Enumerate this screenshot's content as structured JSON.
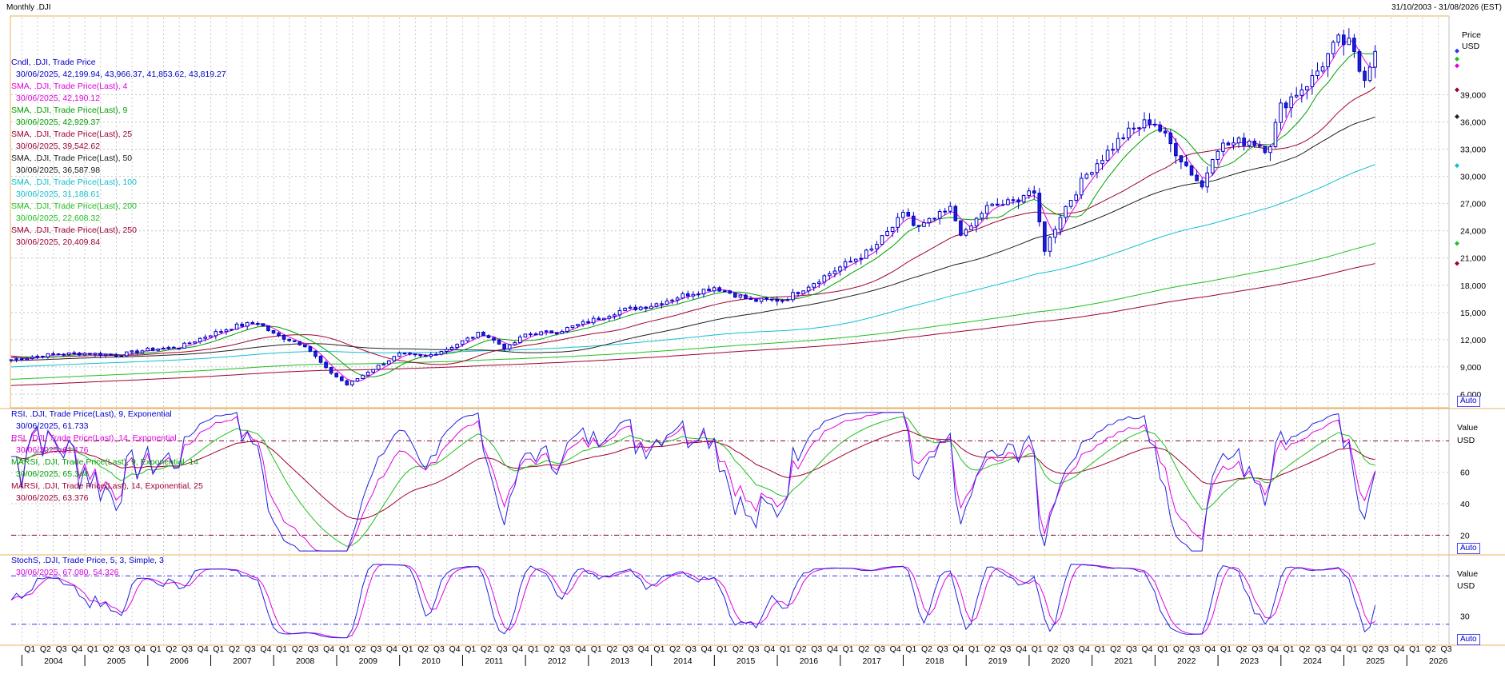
{
  "window": {
    "timeframe_label": "Monthly  .DJI",
    "date_range": "31/10/2003 - 31/08/2026 (EST)"
  },
  "price_panel": {
    "legend": [
      {
        "name": "Cndl, .DJI, Trade Price",
        "value": "30/06/2025, 42,199.94, 43,966.37, 41,853.62, 43,819.27",
        "color": "#0000c8",
        "value_color": "#0000c8"
      },
      {
        "name": "SMA, .DJI, Trade Price(Last),  4",
        "value": "30/06/2025, 42,190.12",
        "color": "#e000e0",
        "value_color": "#e000e0"
      },
      {
        "name": "SMA, .DJI, Trade Price(Last),  9",
        "value": "30/06/2025, 42,929.37",
        "color": "#00a000",
        "value_color": "#00a000"
      },
      {
        "name": "SMA, .DJI, Trade Price(Last),  25",
        "value": "30/06/2025, 39,542.62",
        "color": "#a00030",
        "value_color": "#a00030"
      },
      {
        "name": "SMA, .DJI, Trade Price(Last),  50",
        "value": "30/06/2025, 36,587.98",
        "color": "#202020",
        "value_color": "#202020"
      },
      {
        "name": "SMA, .DJI, Trade Price(Last),  100",
        "value": "30/06/2025, 31,188.61",
        "color": "#10c0d0",
        "value_color": "#10c0d0"
      },
      {
        "name": "SMA, .DJI, Trade Price(Last),  200",
        "value": "30/06/2025, 22,608.32",
        "color": "#20c020",
        "value_color": "#20c020"
      },
      {
        "name": "SMA, .DJI, Trade Price(Last),  250",
        "value": "30/06/2025, 20,409.84",
        "color": "#a00030",
        "value_color": "#a00030"
      }
    ],
    "right_labels": [
      "Price",
      "USD"
    ],
    "auto_label": "Auto"
  },
  "rsi_panel": {
    "legend": [
      {
        "name": "RSI, .DJI, Trade Price(Last),  9, Exponential",
        "value": "30/06/2025, 61.733",
        "color": "#0000c8",
        "value_color": "#0000c8"
      },
      {
        "name": "RSI, .DJI, Trade Price(Last),  14, Exponential",
        "value": "30/06/2025, 61.176",
        "color": "#e000e0",
        "value_color": "#e000e0"
      },
      {
        "name": "MARSI, .DJI, Trade Price(Last),  9, Exponential, 14",
        "value": "30/06/2025, 65.344",
        "color": "#00a000",
        "value_color": "#00a000"
      },
      {
        "name": "MARSI, .DJI, Trade Price(Last),  14, Exponential, 25",
        "value": "30/06/2025, 63.376",
        "color": "#a00030",
        "value_color": "#a00030"
      }
    ],
    "right_labels": [
      "Value",
      "USD"
    ],
    "auto_label": "Auto"
  },
  "stoch_panel": {
    "legend": [
      {
        "name": "StochS, .DJI, Trade Price,  5, 3, Simple, 3",
        "value": "30/06/2025, 67.080, 54.326",
        "color": "#0000c8",
        "value_color": "#e000e0"
      }
    ],
    "right_labels": [
      "Value",
      "USD"
    ],
    "auto_label": "Auto"
  },
  "chart_data": [
    {
      "type": "candlestick",
      "title": ".DJI Monthly",
      "ylabel": "USD",
      "ylim": [
        4500,
        47500
      ],
      "yticks": [
        6000,
        9000,
        12000,
        15000,
        18000,
        21000,
        24000,
        27000,
        30000,
        33000,
        36000,
        39000
      ],
      "yticklabels": [
        "6,000",
        "9,000",
        "12,000",
        "15,000",
        "18,000",
        "21,000",
        "24,000",
        "27,000",
        "30,000",
        "33,000",
        "36,000",
        "39,000"
      ],
      "x_quarter_labels": [
        "Q1",
        "Q2",
        "Q3",
        "Q4"
      ],
      "x_years": [
        "2004",
        "2005",
        "2006",
        "2007",
        "2008",
        "2009",
        "2010",
        "2011",
        "2012",
        "2013",
        "2014",
        "2015",
        "2016",
        "2017",
        "2018",
        "2019",
        "2020",
        "2021",
        "2022",
        "2023",
        "2024",
        "2025",
        "2026"
      ],
      "x_start": 2003.83,
      "x_end": 2026.67,
      "close_anchors": [
        [
          2003.83,
          9800
        ],
        [
          2004.5,
          10400
        ],
        [
          2005.0,
          10500
        ],
        [
          2005.5,
          10300
        ],
        [
          2006.0,
          10900
        ],
        [
          2006.5,
          11200
        ],
        [
          2007.0,
          12600
        ],
        [
          2007.4,
          13500
        ],
        [
          2007.75,
          13900
        ],
        [
          2008.0,
          12600
        ],
        [
          2008.5,
          11400
        ],
        [
          2008.83,
          8800
        ],
        [
          2009.17,
          7000
        ],
        [
          2009.5,
          8500
        ],
        [
          2010.0,
          10400
        ],
        [
          2010.4,
          10100
        ],
        [
          2010.75,
          11000
        ],
        [
          2011.3,
          12800
        ],
        [
          2011.7,
          11000
        ],
        [
          2012.0,
          12600
        ],
        [
          2012.5,
          12900
        ],
        [
          2013.0,
          14000
        ],
        [
          2013.5,
          15200
        ],
        [
          2014.0,
          15800
        ],
        [
          2014.5,
          16900
        ],
        [
          2015.0,
          17800
        ],
        [
          2015.6,
          16300
        ],
        [
          2016.1,
          16400
        ],
        [
          2016.6,
          18400
        ],
        [
          2017.0,
          20000
        ],
        [
          2017.5,
          21900
        ],
        [
          2018.05,
          26100
        ],
        [
          2018.2,
          24100
        ],
        [
          2018.75,
          26400
        ],
        [
          2018.95,
          23300
        ],
        [
          2019.3,
          26500
        ],
        [
          2019.75,
          27200
        ],
        [
          2020.05,
          28700
        ],
        [
          2020.25,
          21900
        ],
        [
          2020.5,
          25800
        ],
        [
          2020.95,
          30600
        ],
        [
          2021.5,
          34500
        ],
        [
          2021.95,
          36300
        ],
        [
          2022.4,
          32100
        ],
        [
          2022.75,
          28800
        ],
        [
          2022.95,
          33200
        ],
        [
          2023.5,
          34000
        ],
        [
          2023.8,
          33000
        ],
        [
          2024.0,
          37700
        ],
        [
          2024.5,
          40800
        ],
        [
          2024.9,
          44900
        ],
        [
          2025.1,
          44500
        ],
        [
          2025.3,
          40700
        ],
        [
          2025.5,
          43819
        ]
      ],
      "ma_last_values": {
        "sma4": 42190.12,
        "sma9": 42929.37,
        "sma25": 39542.62,
        "sma50": 36587.98,
        "sma100": 31188.61,
        "sma200": 22608.32,
        "sma250": 20409.84
      }
    },
    {
      "type": "line",
      "title": "RSI",
      "ylim": [
        8,
        100
      ],
      "yticks": [
        20,
        40,
        60
      ],
      "yticklabels": [
        "20",
        "40",
        "60"
      ],
      "reference_lines": [
        20,
        80
      ],
      "last_values": {
        "rsi9": 61.733,
        "rsi14": 61.176,
        "marsi9": 65.344,
        "marsi14": 63.376
      }
    },
    {
      "type": "line",
      "title": "StochS",
      "ylim": [
        -5,
        105
      ],
      "yticks": [
        30
      ],
      "yticklabels": [
        "30"
      ],
      "reference_lines": [
        20,
        80
      ],
      "last_values": {
        "k": 67.08,
        "d": 54.326
      }
    }
  ]
}
